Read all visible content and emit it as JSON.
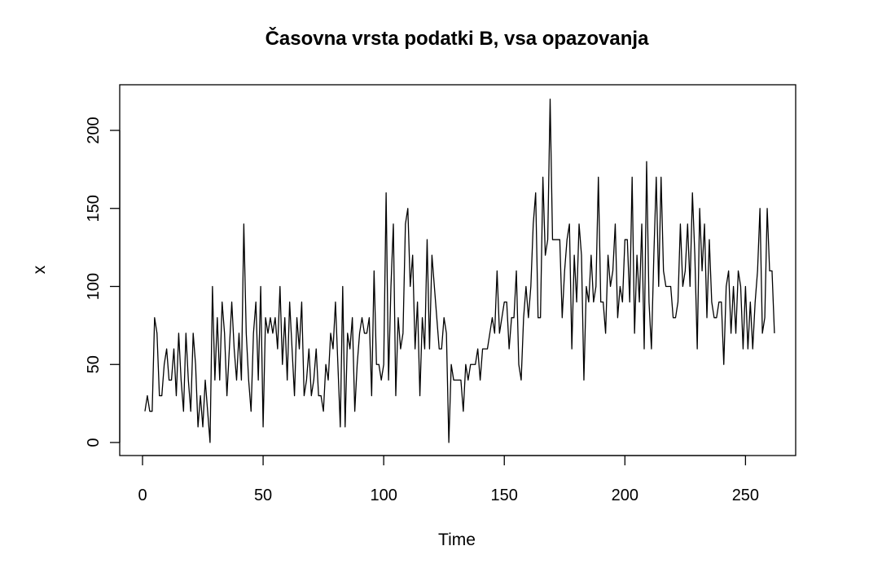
{
  "chart_data": {
    "type": "line",
    "title": "Časovna vrsta podatki B, vsa opazovanja",
    "xlabel": "Time",
    "ylabel": "x",
    "xlim": [
      1,
      261
    ],
    "ylim": [
      0,
      220
    ],
    "xticks": [
      0,
      50,
      100,
      150,
      200,
      250
    ],
    "yticks": [
      0,
      50,
      100,
      150,
      200
    ],
    "grid": false,
    "line_color": "#000000",
    "series": [
      {
        "x_start": 1,
        "values": [
          20,
          30,
          20,
          20,
          80,
          70,
          30,
          30,
          50,
          60,
          40,
          40,
          60,
          30,
          70,
          40,
          20,
          70,
          40,
          20,
          70,
          50,
          10,
          30,
          10,
          40,
          20,
          0,
          100,
          40,
          80,
          40,
          90,
          70,
          30,
          60,
          90,
          60,
          40,
          70,
          40,
          140,
          70,
          40,
          20,
          70,
          90,
          40,
          100,
          10,
          80,
          70,
          80,
          70,
          80,
          60,
          100,
          50,
          80,
          40,
          90,
          60,
          30,
          80,
          60,
          90,
          30,
          40,
          60,
          30,
          40,
          60,
          30,
          30,
          20,
          50,
          40,
          70,
          60,
          90,
          50,
          10,
          100,
          10,
          70,
          60,
          80,
          20,
          50,
          70,
          80,
          70,
          70,
          80,
          30,
          110,
          50,
          50,
          40,
          50,
          160,
          40,
          100,
          140,
          30,
          80,
          60,
          70,
          140,
          150,
          100,
          120,
          60,
          90,
          30,
          80,
          60,
          130,
          60,
          120,
          100,
          80,
          60,
          60,
          80,
          70,
          0,
          50,
          40,
          40,
          40,
          40,
          20,
          50,
          40,
          50,
          50,
          50,
          60,
          40,
          60,
          60,
          60,
          70,
          80,
          70,
          110,
          70,
          80,
          90,
          90,
          60,
          80,
          80,
          110,
          50,
          40,
          80,
          100,
          80,
          100,
          140,
          160,
          80,
          80,
          170,
          120,
          130,
          220,
          130,
          130,
          130,
          130,
          80,
          110,
          130,
          140,
          60,
          120,
          90,
          140,
          120,
          40,
          100,
          90,
          120,
          90,
          100,
          170,
          90,
          90,
          70,
          120,
          100,
          110,
          140,
          80,
          100,
          90,
          130,
          130,
          90,
          170,
          70,
          120,
          90,
          140,
          60,
          180,
          90,
          60,
          120,
          170,
          100,
          170,
          110,
          100,
          100,
          100,
          80,
          80,
          90,
          140,
          100,
          110,
          140,
          100,
          160,
          120,
          60,
          150,
          110,
          140,
          80,
          130,
          90,
          80,
          80,
          90,
          90,
          50,
          100,
          110,
          70,
          100,
          70,
          110,
          100,
          60,
          100,
          60,
          90,
          60,
          90,
          110,
          150,
          70,
          80,
          150,
          110,
          110,
          70
        ]
      }
    ]
  }
}
